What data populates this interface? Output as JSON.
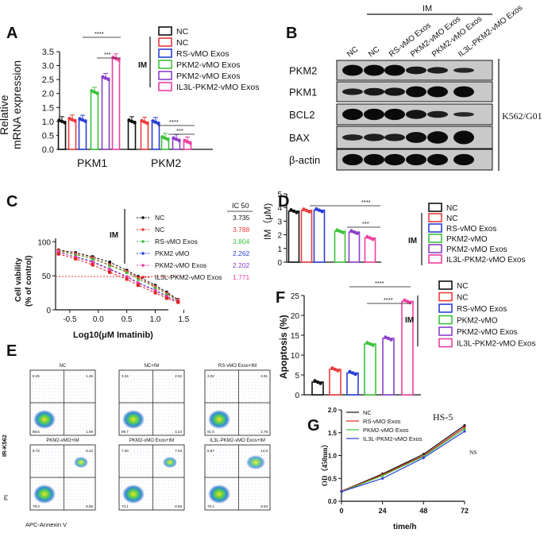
{
  "colors": {
    "nc": "#111111",
    "nc_im": "#ee3a3a",
    "rs": "#2a3fd6",
    "pkm2vmo": "#3cc23c",
    "pkm2exos": "#8a3fc9",
    "il3l": "#ef3fa2"
  },
  "panels": {
    "A": "A",
    "B": "B",
    "C": "C",
    "D": "D",
    "E": "E",
    "F": "F",
    "G": "G"
  },
  "legend": {
    "labels": [
      "NC",
      "NC",
      "RS-vMO Exos",
      "PKM2-vMO Exos",
      "PKM2-vMO Exos",
      "IL3L-PKM2-vMO Exos"
    ],
    "d_labels": [
      "NC",
      "NC",
      "RS-vMO Exos",
      "PKM2-vMO",
      "PKM2-vMO Exos",
      "IL3L-PKM2-vMO Exos"
    ],
    "f_labels": [
      "NC",
      "NC",
      "RS-vMO Exos",
      "PKM2-vMO",
      "PKM2-vMO Exos",
      "IL3L-PKM2-vMO Exos"
    ],
    "im": "IM"
  },
  "panel_a": {
    "ylabel_line1": "Relative",
    "ylabel_line2": "mRNA expression",
    "yticks": [
      "0.0",
      "0.5",
      "1.0",
      "1.5",
      "2.0",
      "2.5",
      "3.0",
      "3.5"
    ],
    "sig1": "****",
    "sig2": "***"
  },
  "panel_b": {
    "im": "IM",
    "lane_labels": [
      "NC",
      "NC",
      "RS-vMO Exos",
      "PKM2-vMO Exos",
      "PKM2-vMO Exos",
      "IL3L-PKM2-vMO Exos"
    ],
    "proteins": [
      "PKM2",
      "PKM1",
      "BCL2",
      "BAX",
      "β-actin"
    ],
    "cell_line": "K562/G01"
  },
  "panel_c": {
    "ylabel_line1": "Cell vability",
    "ylabel_line2": "(% of control)",
    "xlabel": "Log10(μM Imatinib)",
    "xticks": [
      "-0.5",
      "0.0",
      "0.5",
      "1.0",
      "1.5"
    ],
    "yticks": [
      "0",
      "50",
      "100"
    ],
    "ic50_header": "IC 50",
    "legend": [
      "NC",
      "NC",
      "RS-vMO Exos",
      "PKM2 vMO",
      "PKM2-vMO Exos",
      "IL3L-PKM2-vMO Exos"
    ],
    "ic50": [
      "3.735",
      "3.788",
      "3.804",
      "2.262",
      "2.202",
      "1.771"
    ],
    "im": "IM"
  },
  "panel_d": {
    "ylabel": "IM（μM)",
    "yticks": [
      "0",
      "1",
      "2",
      "3",
      "4",
      "5"
    ],
    "sig1": "****",
    "sig2": "***"
  },
  "panel_e": {
    "titles": [
      "NC",
      "NC+IM",
      "RS-vMO Exos+IM",
      "PKM2-vMO+IM",
      "PKM2-vMO Exos+IM",
      "IL3L-PKM2-vMO Exos+IM"
    ],
    "quadrants": [
      [
        "8.25",
        "1.46",
        "88.6",
        "1.69"
      ],
      [
        "3.34",
        "2.52",
        "89.7",
        "4.44"
      ],
      [
        "3.02",
        "2.81",
        "91.5",
        "2.78"
      ],
      [
        "8.73",
        "6.42",
        "78.0",
        "6.85"
      ],
      [
        "7.30",
        "7.03",
        "73.1",
        "8.58"
      ],
      [
        "6.87",
        "14.8",
        "70.4",
        "8.93"
      ]
    ],
    "ylabel_top": "IR-K562",
    "ylabel_bottom": "PI",
    "xlabel": "APC-Annexin V"
  },
  "panel_f": {
    "ylabel": "Apoptosis (%)",
    "yticks": [
      "0",
      "5",
      "10",
      "15",
      "20",
      "25"
    ],
    "sig1": "****",
    "sig2": "****"
  },
  "panel_g": {
    "title": "HS-5",
    "legend": [
      "NC",
      "RS-vMO Exos",
      "PKM2-vMO Exos",
      "IL3L-PKM2-vMO Exos"
    ],
    "ylabel": "OD（450nm）",
    "xlabel": "time/h",
    "xticks": [
      "0",
      "24",
      "48",
      "72"
    ],
    "yticks": [
      "0.0",
      "0.5",
      "1.0",
      "1.5",
      "2.0"
    ],
    "ns": "NS"
  },
  "chart_data": [
    {
      "id": "A",
      "type": "bar",
      "title": "",
      "categories": [
        "PKM1",
        "PKM2"
      ],
      "ylabel": "Relative mRNA expression",
      "ylim": [
        0,
        3.5
      ],
      "series": [
        {
          "name": "NC",
          "values": [
            1.0,
            1.0
          ]
        },
        {
          "name": "NC + IM",
          "values": [
            1.06,
            0.98
          ]
        },
        {
          "name": "RS-vMO Exos + IM",
          "values": [
            1.05,
            0.97
          ]
        },
        {
          "name": "PKM2-vMO Exos + IM",
          "values": [
            2.05,
            0.4
          ]
        },
        {
          "name": "PKM2-vMO Exos + IM",
          "values": [
            2.55,
            0.36
          ]
        },
        {
          "name": "IL3L-PKM2-vMO Exos + IM",
          "values": [
            3.25,
            0.27
          ]
        }
      ]
    },
    {
      "id": "C",
      "type": "line",
      "xlabel": "Log10(μM Imatinib)",
      "ylabel": "Cell vability (% of control)",
      "xlim": [
        -0.75,
        1.55
      ],
      "ylim": [
        0,
        105
      ],
      "x": [
        -0.7,
        -0.4,
        -0.1,
        0.2,
        0.5,
        0.7,
        1.0,
        1.2,
        1.4
      ],
      "series": [
        {
          "name": "NC",
          "values": [
            88,
            84,
            78,
            70,
            58,
            49,
            36,
            26,
            15
          ]
        },
        {
          "name": "NC",
          "values": [
            87,
            82,
            76,
            66,
            56,
            47,
            34,
            24,
            14
          ]
        },
        {
          "name": "RS-vMO Exos",
          "values": [
            86,
            81,
            75,
            65,
            55,
            45,
            33,
            23,
            13
          ]
        },
        {
          "name": "PKM2 vMO",
          "values": [
            84,
            78,
            71,
            60,
            49,
            40,
            29,
            20,
            12
          ]
        },
        {
          "name": "PKM2-vMO Exos",
          "values": [
            85,
            77,
            70,
            59,
            48,
            39,
            28,
            19,
            12
          ]
        },
        {
          "name": "IL3L-PKM2-vMO Exos",
          "values": [
            82,
            75,
            66,
            55,
            45,
            36,
            25,
            17,
            11
          ]
        }
      ]
    },
    {
      "id": "D",
      "type": "bar",
      "ylabel": "IM（μM)",
      "ylim": [
        0,
        5
      ],
      "categories": [
        "NC",
        "NC",
        "RS-vMO Exos",
        "PKM2-vMO",
        "PKM2-vMO Exos",
        "IL3L-PKM2-vMO Exos"
      ],
      "values": [
        3.73,
        3.78,
        3.8,
        2.26,
        2.2,
        1.77
      ]
    },
    {
      "id": "F",
      "type": "bar",
      "ylabel": "Apoptosis (%)",
      "ylim": [
        0,
        25
      ],
      "categories": [
        "NC",
        "NC",
        "RS-vMO Exos",
        "PKM2-vMO",
        "PKM2-vMO Exos",
        "IL3L-PKM2-vMO Exos"
      ],
      "values": [
        3.2,
        6.4,
        5.5,
        12.8,
        14.2,
        23.5
      ]
    },
    {
      "id": "G",
      "type": "line",
      "title": "HS-5",
      "xlabel": "time/h",
      "ylabel": "OD（450nm）",
      "xlim": [
        0,
        72
      ],
      "ylim": [
        0,
        2.0
      ],
      "x": [
        0,
        24,
        48,
        72
      ],
      "series": [
        {
          "name": "NC",
          "values": [
            0.22,
            0.6,
            1.03,
            1.66
          ]
        },
        {
          "name": "RS-vMO Exos",
          "values": [
            0.22,
            0.58,
            1.0,
            1.62
          ]
        },
        {
          "name": "PKM2-vMO Exos",
          "values": [
            0.21,
            0.56,
            0.98,
            1.58
          ]
        },
        {
          "name": "IL3L-PKM2-vMO Exos",
          "values": [
            0.21,
            0.5,
            0.95,
            1.53
          ]
        }
      ]
    }
  ]
}
